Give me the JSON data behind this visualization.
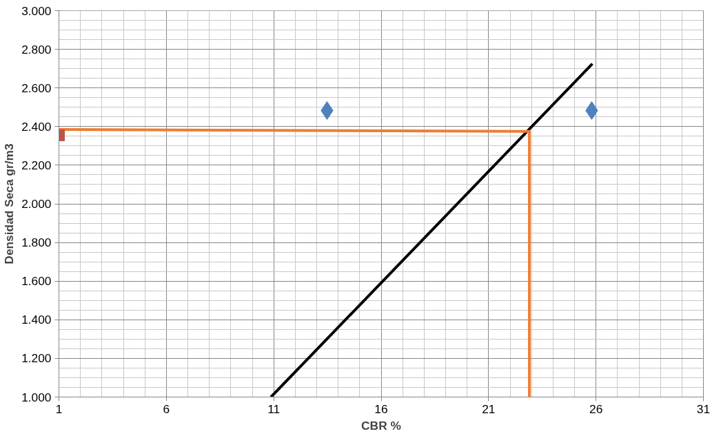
{
  "chart_data": {
    "type": "scatter",
    "xlabel": "CBR %",
    "ylabel": "Densidad Seca gr/m3",
    "xlim": [
      1,
      31
    ],
    "xticks": [
      1,
      6,
      11,
      16,
      21,
      26,
      31
    ],
    "ylim": [
      1.0,
      3.0
    ],
    "yticks": [
      {
        "value": 1.0,
        "label": "1.000"
      },
      {
        "value": 1.2,
        "label": "1.200"
      },
      {
        "value": 1.4,
        "label": "1.400"
      },
      {
        "value": 1.6,
        "label": "1.600"
      },
      {
        "value": 1.8,
        "label": "1.800"
      },
      {
        "value": 2.0,
        "label": "2.000"
      },
      {
        "value": 2.2,
        "label": "2.200"
      },
      {
        "value": 2.4,
        "label": "2.400"
      },
      {
        "value": 2.6,
        "label": "2.600"
      },
      {
        "value": 2.8,
        "label": "2.800"
      },
      {
        "value": 3.0,
        "label": "3.000"
      }
    ],
    "grid": true,
    "series": [
      {
        "type": "line",
        "color": "#000000",
        "x": [
          10.87,
          25.83
        ],
        "values": [
          1.0,
          2.725
        ]
      },
      {
        "type": "line",
        "color": "#ed7d31",
        "x": [
          1,
          22.9,
          22.9
        ],
        "values": [
          2.385,
          2.375,
          1.0
        ]
      },
      {
        "color": "#4f81bd",
        "x": [
          13.48,
          25.8
        ],
        "values": [
          2.483,
          2.483
        ],
        "marker": "diamond"
      },
      {
        "color": "#c0504d",
        "x": [
          1
        ],
        "values": [
          2.355
        ],
        "marker": "square"
      }
    ]
  }
}
